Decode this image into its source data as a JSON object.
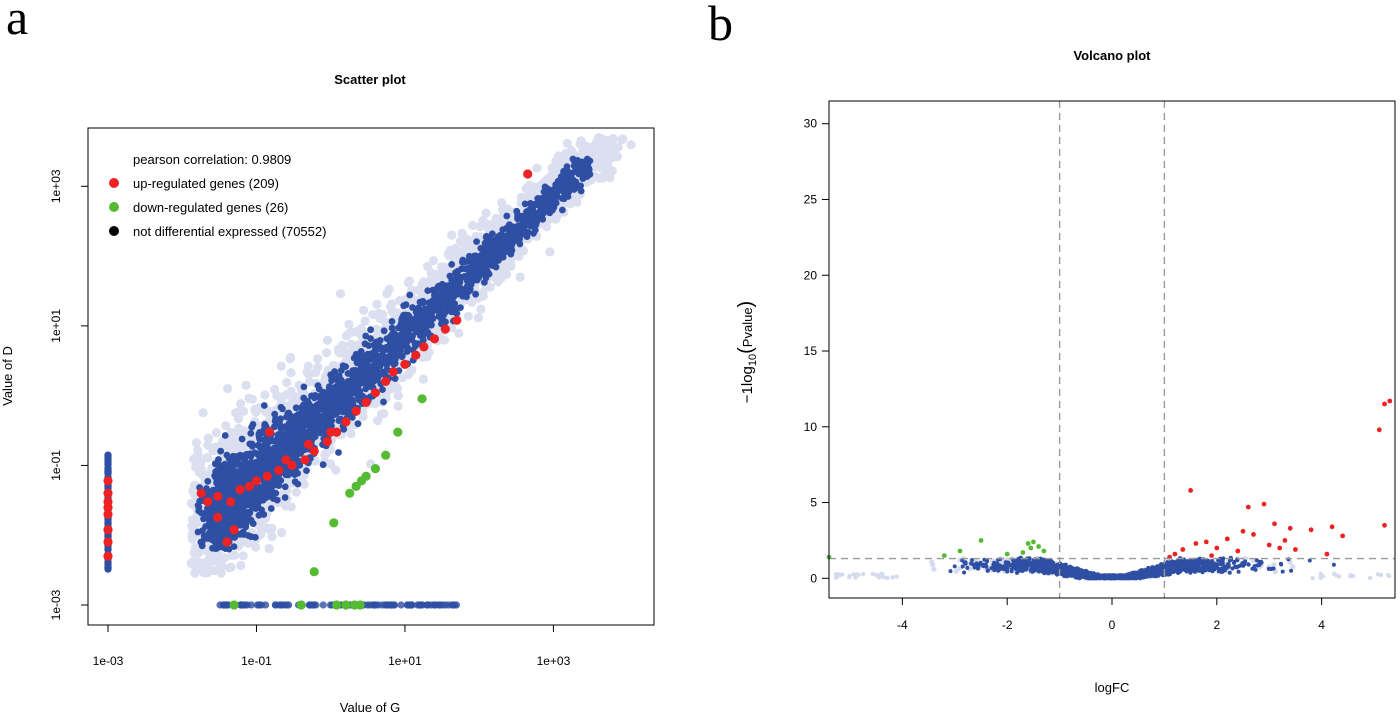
{
  "panels": {
    "a": {
      "letter": "a"
    },
    "b": {
      "letter": "b"
    }
  },
  "colors": {
    "up": "#ee2222",
    "down": "#55bb33",
    "not_de": "#000000",
    "point": "#2e4fa3",
    "point_halo": "#9aa4d6",
    "frame": "#000000",
    "threshold": "#999999"
  },
  "chart_data": [
    {
      "type": "scatter",
      "title": "Scatter plot",
      "xlabel": "Value of G",
      "ylabel": "Value of D",
      "log_scale": true,
      "xlim": [
        0.001,
        20000
      ],
      "ylim": [
        0.001,
        6000
      ],
      "x_ticks": [
        0.001,
        0.1,
        10,
        1000
      ],
      "y_ticks": [
        0.001,
        0.1,
        10,
        1000
      ],
      "x_tick_labels": [
        "1e-03",
        "1e-01",
        "1e+01",
        "1e+03"
      ],
      "y_tick_labels": [
        "1e-03",
        "1e-01",
        "1e+01",
        "1e+03"
      ],
      "grid": false,
      "legend_position": "top-left",
      "annotation": "pearson correlation: 0.9809",
      "legend": [
        {
          "label": "up-regulated genes (209)",
          "color": "#ee2222"
        },
        {
          "label": "down-regulated genes (26)",
          "color": "#55bb33"
        },
        {
          "label": "not differential expressed (70552)",
          "color": "#000000"
        }
      ],
      "series": [
        {
          "role": "up-regulated",
          "points": [
            [
              0.018,
              0.04
            ],
            [
              0.022,
              0.03
            ],
            [
              0.03,
              0.036
            ],
            [
              0.045,
              0.03
            ],
            [
              0.06,
              0.045
            ],
            [
              0.08,
              0.05
            ],
            [
              0.1,
              0.06
            ],
            [
              0.14,
              0.07
            ],
            [
              0.2,
              0.085
            ],
            [
              0.3,
              0.1
            ],
            [
              0.45,
              0.12
            ],
            [
              0.6,
              0.16
            ],
            [
              0.9,
              0.22
            ],
            [
              1.2,
              0.3
            ],
            [
              1.6,
              0.42
            ],
            [
              2.2,
              0.6
            ],
            [
              3,
              0.8
            ],
            [
              4,
              1.1
            ],
            [
              5.5,
              1.6
            ],
            [
              7,
              2.2
            ],
            [
              10,
              2.8
            ],
            [
              14,
              3.8
            ],
            [
              18,
              5
            ],
            [
              25,
              6.5
            ],
            [
              35,
              9
            ],
            [
              50,
              12
            ],
            [
              450,
              1500
            ],
            [
              0.15,
              0.3
            ],
            [
              0.05,
              0.012
            ],
            [
              0.03,
              0.018
            ],
            [
              0.04,
              0.008
            ],
            [
              0.25,
              0.12
            ],
            [
              0.5,
              0.2
            ],
            [
              1,
              0.3
            ],
            [
              0.001,
              0.06
            ],
            [
              0.001,
              0.03
            ],
            [
              0.001,
              0.02
            ],
            [
              0.001,
              0.012
            ],
            [
              0.001,
              0.008
            ],
            [
              0.001,
              0.005
            ],
            [
              0.001,
              0.04
            ],
            [
              0.001,
              0.025
            ]
          ]
        },
        {
          "role": "down-regulated",
          "points": [
            [
              0.4,
              0.001
            ],
            [
              0.6,
              0.003
            ],
            [
              1.1,
              0.015
            ],
            [
              1.8,
              0.04
            ],
            [
              2.2,
              0.05
            ],
            [
              2.6,
              0.06
            ],
            [
              3,
              0.07
            ],
            [
              4,
              0.09
            ],
            [
              5.5,
              0.14
            ],
            [
              8,
              0.3
            ],
            [
              17,
              0.9
            ],
            [
              0.05,
              0.001
            ],
            [
              1.2,
              0.001
            ],
            [
              1.6,
              0.001
            ],
            [
              2.1,
              0.001
            ],
            [
              2.5,
              0.001
            ]
          ]
        }
      ]
    },
    {
      "type": "scatter",
      "title": "Volcano plot",
      "xlabel": "logFC",
      "ylabel": "−1log10(Pvalue)",
      "ylabel_main": "−1log",
      "ylabel_sub": "10",
      "ylabel_arg": "Pvalue",
      "xlim": [
        -5.4,
        5.4
      ],
      "ylim": [
        -1.3,
        31.5
      ],
      "x_ticks": [
        -4,
        -2,
        0,
        2,
        4
      ],
      "y_ticks": [
        0,
        5,
        10,
        15,
        20,
        25,
        30
      ],
      "x_tick_labels": [
        "-4",
        "-2",
        "0",
        "2",
        "4"
      ],
      "y_tick_labels": [
        "0",
        "5",
        "10",
        "15",
        "20",
        "25",
        "30"
      ],
      "grid": false,
      "vlines": [
        -1,
        1
      ],
      "hline": 1.3,
      "series": [
        {
          "role": "up-regulated",
          "points": [
            [
              1.5,
              5.8
            ],
            [
              2.6,
              4.7
            ],
            [
              2.9,
              4.9
            ],
            [
              3.1,
              3.6
            ],
            [
              3.4,
              3.3
            ],
            [
              3.8,
              3.2
            ],
            [
              4.2,
              3.4
            ],
            [
              4.4,
              2.8
            ],
            [
              4.1,
              1.6
            ],
            [
              5.2,
              11.5
            ],
            [
              5.3,
              11.7
            ],
            [
              5.1,
              9.8
            ],
            [
              5.2,
              3.5
            ],
            [
              1.2,
              1.6
            ],
            [
              1.35,
              1.9
            ],
            [
              1.6,
              2.3
            ],
            [
              1.8,
              2.4
            ],
            [
              2.0,
              2.0
            ],
            [
              2.2,
              2.6
            ],
            [
              2.4,
              1.8
            ],
            [
              2.7,
              2.9
            ],
            [
              3.0,
              2.2
            ],
            [
              3.3,
              2.5
            ],
            [
              3.5,
              1.9
            ],
            [
              1.1,
              1.4
            ],
            [
              1.9,
              1.5
            ],
            [
              2.5,
              3.1
            ],
            [
              3.2,
              2.0
            ]
          ]
        },
        {
          "role": "down-regulated",
          "points": [
            [
              -5.4,
              1.4
            ],
            [
              -3.2,
              1.5
            ],
            [
              -2.9,
              1.8
            ],
            [
              -2.5,
              2.5
            ],
            [
              -2.0,
              1.6
            ],
            [
              -1.6,
              2.3
            ],
            [
              -1.55,
              2.0
            ],
            [
              -1.5,
              2.4
            ],
            [
              -1.4,
              2.1
            ],
            [
              -1.3,
              1.8
            ],
            [
              -1.7,
              1.7
            ]
          ]
        },
        {
          "role": "not differential expressed",
          "shape": "v-shaped cloud",
          "points": []
        }
      ]
    }
  ]
}
